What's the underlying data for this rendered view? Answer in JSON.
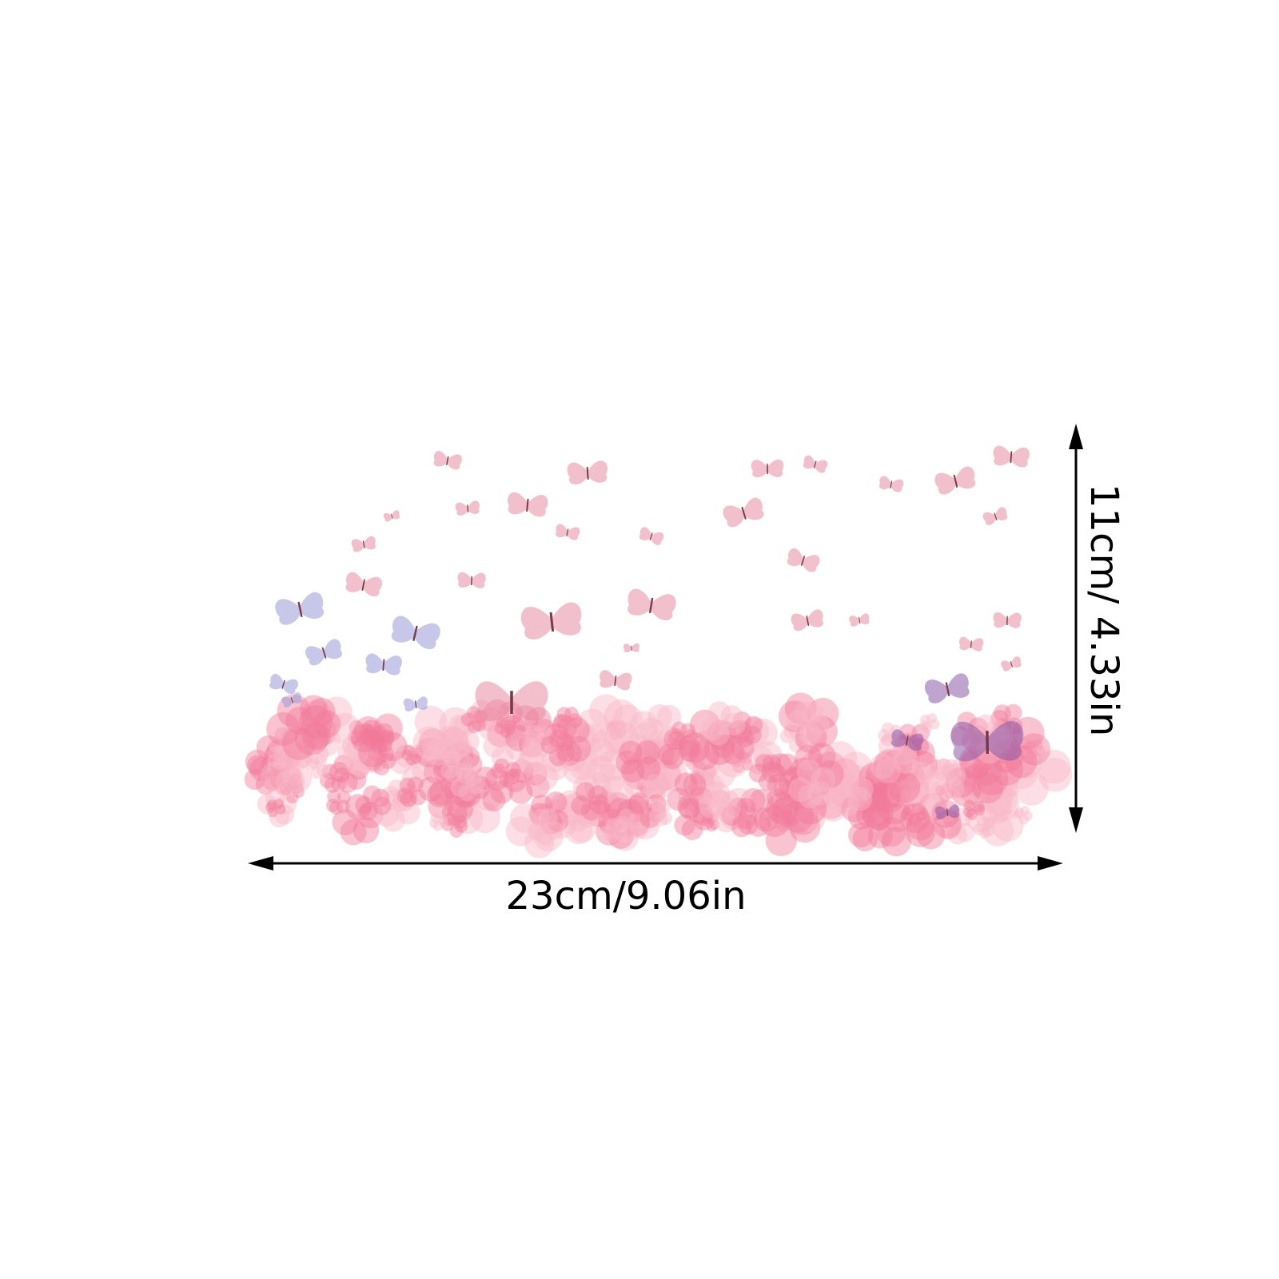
{
  "product": {
    "width_label": "23cm/9.06in",
    "height_label": "11cm/ 4.33in"
  },
  "colors": {
    "flower_pink": "#f27a9a",
    "flower_light": "#f8b9c8",
    "butterfly_pink": "#e98ca4",
    "butterfly_lavender": "#9b9bd8",
    "butterfly_purple": "#8a5aa8",
    "arrow": "#000000"
  }
}
